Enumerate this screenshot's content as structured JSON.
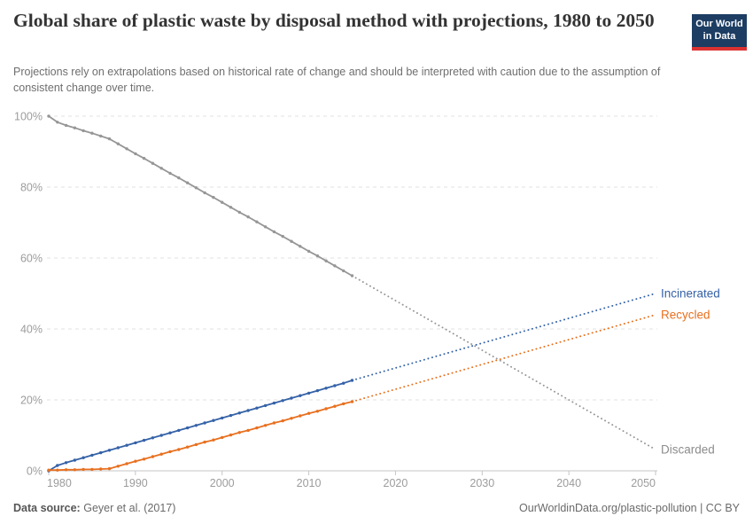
{
  "header": {
    "title": "Global share of plastic waste by disposal method with projections, 1980 to 2050",
    "subtitle": "Projections rely on extrapolations based on historical rate of change and should be interpreted with caution due to the assumption of consistent change over time."
  },
  "logo": {
    "line1": "Our World",
    "line2": "in Data",
    "bg_color": "#1d3d63",
    "bar_color": "#dc3232"
  },
  "footer": {
    "source_label": "Data source:",
    "source_value": "Geyer et al. (2017)",
    "credit": "OurWorldinData.org/plastic-pollution | CC BY"
  },
  "chart_data": {
    "type": "line",
    "title": "Global share of plastic waste by disposal method with projections, 1980 to 2050",
    "xlabel": "",
    "ylabel": "",
    "grid": "dashed horizontal gridlines",
    "legend_position": "right end of lines",
    "x": {
      "min": 1980,
      "max": 2050,
      "ticks": [
        1980,
        1990,
        2000,
        2010,
        2020,
        2030,
        2040,
        2050
      ]
    },
    "y": {
      "min": 0,
      "max": 100,
      "ticks": [
        0,
        20,
        40,
        60,
        80,
        100
      ],
      "tick_suffix": "%"
    },
    "historical_start_year": 1980,
    "historical_end_year": 2015,
    "projection_style": "dotted",
    "series": [
      {
        "name": "Discarded",
        "color": "#969696",
        "label_color": "#8c8c8c",
        "values": [
          100,
          98.3,
          97.4,
          96.7,
          95.9,
          95.2,
          94.4,
          93.6,
          92.2,
          90.8,
          89.4,
          88.1,
          86.7,
          85.3,
          83.9,
          82.6,
          81.2,
          79.8,
          78.4,
          77.1,
          75.7,
          74.3,
          72.9,
          71.6,
          70.2,
          68.8,
          67.4,
          66.1,
          64.7,
          63.3,
          61.9,
          60.6,
          59.2,
          57.8,
          56.4,
          55
        ],
        "projection": {
          "to_year": 2050,
          "to_value": 6
        }
      },
      {
        "name": "Incinerated",
        "color": "#3562a7",
        "label_color": "#3562a7",
        "values": [
          0,
          1.5,
          2.3,
          3.0,
          3.7,
          4.4,
          5.1,
          5.8,
          6.5,
          7.2,
          7.9,
          8.6,
          9.3,
          10.0,
          10.7,
          11.4,
          12.1,
          12.8,
          13.5,
          14.2,
          14.9,
          15.6,
          16.3,
          17.0,
          17.7,
          18.4,
          19.1,
          19.8,
          20.5,
          21.2,
          21.9,
          22.6,
          23.3,
          24.0,
          24.7,
          25.5
        ],
        "projection": {
          "to_year": 2050,
          "to_value": 50
        }
      },
      {
        "name": "Recycled",
        "color": "#e8701f",
        "label_color": "#e8701f",
        "values": [
          0.2,
          0.2,
          0.3,
          0.3,
          0.4,
          0.4,
          0.5,
          0.6,
          1.3,
          2.0,
          2.7,
          3.3,
          4.0,
          4.7,
          5.4,
          6.0,
          6.7,
          7.4,
          8.1,
          8.7,
          9.4,
          10.1,
          10.8,
          11.4,
          12.1,
          12.8,
          13.5,
          14.1,
          14.8,
          15.5,
          16.2,
          16.8,
          17.5,
          18.2,
          18.9,
          19.5
        ],
        "projection": {
          "to_year": 2050,
          "to_value": 44
        }
      }
    ]
  }
}
